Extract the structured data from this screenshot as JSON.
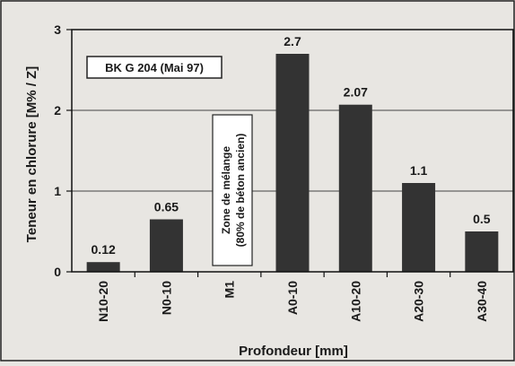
{
  "chart_data": {
    "type": "bar",
    "title": "",
    "xlabel": "Profondeur [mm]",
    "ylabel": "Teneur en chlorure [M% / Z]",
    "ylim": [
      0,
      3
    ],
    "yticks": [
      0,
      1,
      2,
      3
    ],
    "grid": true,
    "categories": [
      "N10-20",
      "N0-10",
      "M1",
      "A0-10",
      "A10-20",
      "A20-30",
      "A30-40"
    ],
    "values": [
      0.12,
      0.65,
      null,
      2.7,
      2.07,
      1.1,
      0.5
    ],
    "data_labels": [
      "0.12",
      "0.65",
      "",
      "2.7",
      "2.07",
      "1.1",
      "0.5"
    ],
    "annotations": {
      "legend_box": "BK G 204 (Mai 97)",
      "zone_line1": "Zone de mélange",
      "zone_line2": "(80% de béton ancien)"
    },
    "colors": {
      "bar": "#333333",
      "background": "#e8e6e2",
      "grid": "#444444"
    }
  }
}
